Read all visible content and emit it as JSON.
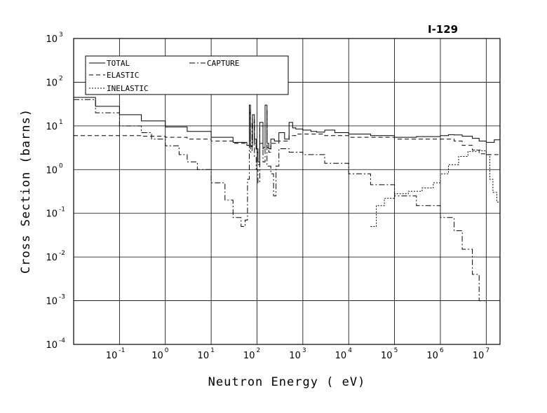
{
  "chart_data": {
    "type": "line",
    "title": "I-129",
    "xlabel": "Neutron Energy ( eV)",
    "ylabel": "Cross Section (barns)",
    "x_scale": "log",
    "y_scale": "log",
    "xlim": [
      0.01,
      20000000
    ],
    "ylim": [
      0.0001,
      1000
    ],
    "grid": true,
    "legend_position": "top-left",
    "x_ticks": [
      {
        "base": "10",
        "exp": "-1",
        "value": 0.1
      },
      {
        "base": "10",
        "exp": "0",
        "value": 1
      },
      {
        "base": "10",
        "exp": "1",
        "value": 10
      },
      {
        "base": "10",
        "exp": "2",
        "value": 100
      },
      {
        "base": "10",
        "exp": "3",
        "value": 1000
      },
      {
        "base": "10",
        "exp": "4",
        "value": 10000
      },
      {
        "base": "10",
        "exp": "5",
        "value": 100000
      },
      {
        "base": "10",
        "exp": "6",
        "value": 1000000
      },
      {
        "base": "10",
        "exp": "7",
        "value": 10000000
      }
    ],
    "y_ticks": [
      {
        "base": "10",
        "exp": "-4",
        "value": 0.0001
      },
      {
        "base": "10",
        "exp": "-3",
        "value": 0.001
      },
      {
        "base": "10",
        "exp": "-2",
        "value": 0.01
      },
      {
        "base": "10",
        "exp": "-1",
        "value": 0.1
      },
      {
        "base": "10",
        "exp": "0",
        "value": 1
      },
      {
        "base": "10",
        "exp": "1",
        "value": 10
      },
      {
        "base": "10",
        "exp": "2",
        "value": 100
      },
      {
        "base": "10",
        "exp": "3",
        "value": 1000
      }
    ],
    "series": [
      {
        "name": "TOTAL",
        "style": "solid",
        "x": [
          0.01,
          0.03,
          0.1,
          0.3,
          1,
          3,
          10,
          30,
          60,
          68,
          72,
          80,
          88,
          96,
          105,
          115,
          135,
          150,
          165,
          180,
          200,
          240,
          300,
          400,
          500,
          600,
          700,
          1000,
          1500,
          2000,
          3000,
          5000,
          10000,
          30000,
          100000,
          300000,
          1000000,
          1500000,
          2000000,
          3000000,
          5000000,
          7000000,
          10000000,
          15000000,
          20000000
        ],
        "y": [
          45,
          28,
          18,
          13,
          9.5,
          7.5,
          5.5,
          4.2,
          3.6,
          30,
          3.5,
          18,
          5,
          3,
          1.5,
          12,
          3.2,
          30,
          4,
          3,
          5,
          4.5,
          7,
          5,
          12,
          9,
          8.5,
          8,
          7.5,
          7.2,
          8,
          7,
          6.5,
          6,
          5.5,
          5.7,
          6,
          6.3,
          6.2,
          5.8,
          5.2,
          4.5,
          4.2,
          4.8,
          4.5
        ]
      },
      {
        "name": "ELASTIC",
        "style": "dashed",
        "x": [
          0.01,
          0.1,
          0.3,
          1,
          3,
          10,
          30,
          60,
          68,
          72,
          80,
          88,
          96,
          105,
          115,
          135,
          150,
          165,
          180,
          200,
          300,
          500,
          700,
          1000,
          3000,
          10000,
          100000,
          1000000,
          2000000,
          3000000,
          5000000,
          7000000,
          10000000,
          20000000
        ],
        "y": [
          6.0,
          6.0,
          5.8,
          5.5,
          5.0,
          4.5,
          4.0,
          3.6,
          25,
          3.4,
          15,
          4,
          2.5,
          1.3,
          10,
          3.0,
          25,
          3.2,
          2.5,
          4,
          4.5,
          6,
          6.5,
          6.5,
          6,
          5.5,
          5,
          5,
          4.5,
          3.6,
          2.8,
          2.3,
          2.2,
          2.5
        ]
      },
      {
        "name": "CAPTURE",
        "style": "dash-dot",
        "x": [
          0.01,
          0.03,
          0.1,
          0.3,
          0.5,
          1,
          2,
          3,
          5,
          10,
          20,
          30,
          45,
          55,
          62,
          68,
          72,
          78,
          88,
          96,
          105,
          115,
          135,
          150,
          165,
          200,
          230,
          260,
          300,
          500,
          1000,
          3000,
          10000,
          30000,
          100000,
          300000,
          1000000,
          2000000,
          3000000,
          5000000,
          7000000,
          10000000
        ],
        "y": [
          40,
          20,
          10,
          7,
          5,
          3.5,
          2.2,
          1.5,
          1.0,
          0.5,
          0.2,
          0.08,
          0.05,
          0.07,
          0.6,
          20,
          2.5,
          12,
          2,
          1,
          0.5,
          4,
          1.5,
          22,
          1.2,
          0.8,
          0.25,
          1.2,
          3,
          2.5,
          2.2,
          1.4,
          0.8,
          0.45,
          0.25,
          0.15,
          0.08,
          0.04,
          0.015,
          0.004,
          0.001,
          0.0009
        ]
      },
      {
        "name": "INELASTIC",
        "style": "dotted",
        "x": [
          30000,
          40000,
          60000,
          100000,
          200000,
          400000,
          700000,
          1000000,
          1500000,
          2500000,
          4000000,
          6000000,
          8000000,
          10000000,
          12000000,
          14000000,
          17000000,
          20000000
        ],
        "y": [
          0.05,
          0.15,
          0.22,
          0.28,
          0.32,
          0.38,
          0.5,
          0.8,
          1.3,
          2.0,
          2.6,
          2.8,
          2.7,
          2.2,
          0.6,
          0.3,
          0.18,
          0.15
        ]
      }
    ]
  }
}
